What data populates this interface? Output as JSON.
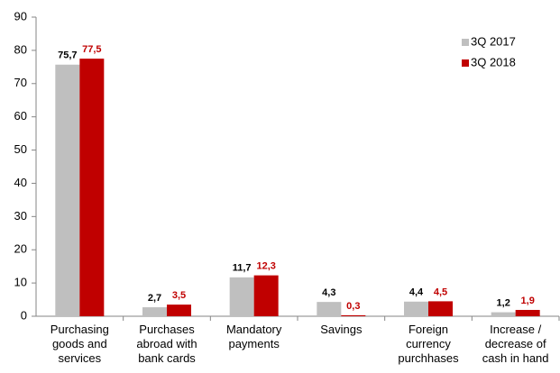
{
  "chart_data": {
    "type": "bar",
    "categories": [
      "Purchasing\ngoods and\nservices",
      "Purchases\nabroad with\nbank cards",
      "Mandatory\npayments",
      "Savings",
      "Foreign\ncurrency\npurchhases",
      "Increase /\ndecrease of\ncash in hand"
    ],
    "series": [
      {
        "name": "3Q 2017",
        "color": "#bfbfbf",
        "values": [
          75.7,
          2.7,
          11.7,
          4.3,
          4.4,
          1.2
        ],
        "value_labels": [
          "75,7",
          "2,7",
          "11,7",
          "4,3",
          "4,4",
          "1,2"
        ]
      },
      {
        "name": "3Q 2018",
        "color": "#c00000",
        "values": [
          77.5,
          3.5,
          12.3,
          0.3,
          4.5,
          1.9
        ],
        "value_labels": [
          "77,5",
          "3,5",
          "12,3",
          "0,3",
          "4,5",
          "1,9"
        ]
      }
    ],
    "ylim": [
      0,
      90
    ],
    "yticks": [
      0,
      10,
      20,
      30,
      40,
      50,
      60,
      70,
      80,
      90
    ],
    "grid": false,
    "legend": "top-right"
  }
}
